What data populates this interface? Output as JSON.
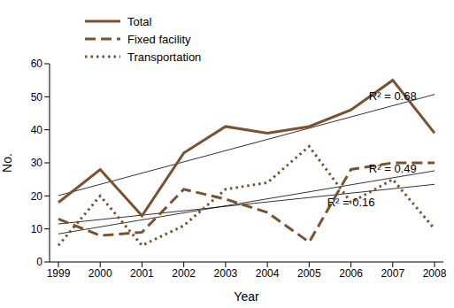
{
  "chart_data": {
    "type": "line",
    "categories": [
      "1999",
      "2000",
      "2001",
      "2002",
      "2003",
      "2004",
      "2005",
      "2006",
      "2007",
      "2008"
    ],
    "x_label": "Year",
    "y_label": "No.",
    "ylim": [
      0,
      60
    ],
    "yticks": [
      0,
      10,
      20,
      30,
      40,
      50,
      60
    ],
    "grid": false,
    "legend": "upper left",
    "series": [
      {
        "name": "Total",
        "color": "#7b5230",
        "line_style": "solid",
        "values": [
          18,
          28,
          14,
          33,
          41,
          39,
          41,
          46,
          55,
          39
        ],
        "trend": [
          20.1,
          50.7
        ],
        "annotation": "R² = 0.68"
      },
      {
        "name": "Fixed facility",
        "color": "#7b5230",
        "line_style": "dashed",
        "values": [
          13,
          8,
          9,
          22,
          19,
          15,
          6,
          28,
          30,
          30
        ],
        "trend": [
          8.5,
          27.6
        ],
        "annotation": "R² = 0.49"
      },
      {
        "name": "Transportation",
        "color": "#7b5230",
        "line_style": "dotted",
        "values": [
          5,
          20,
          5,
          11,
          22,
          24,
          35,
          18,
          25,
          10
        ],
        "trend": [
          11.5,
          23.5
        ],
        "annotation": "R² = 0.16"
      }
    ]
  }
}
